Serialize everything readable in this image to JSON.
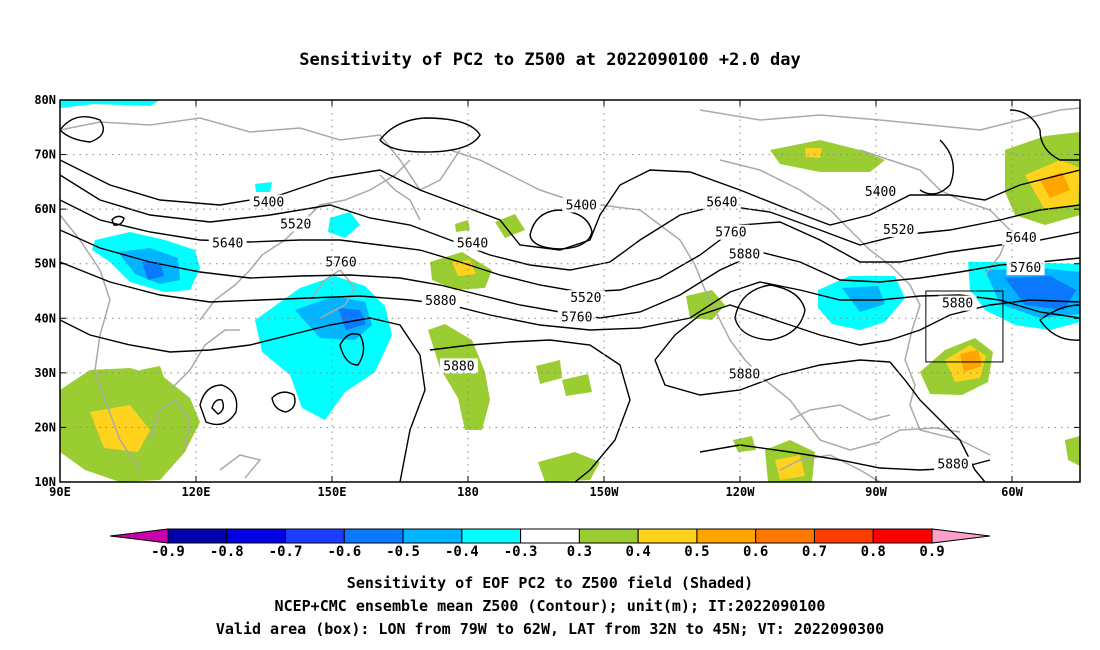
{
  "title": "Sensitivity of PC2 to Z500 at 2022090100 +2.0 day",
  "lat_labels": [
    "80N",
    "70N",
    "60N",
    "50N",
    "40N",
    "30N",
    "20N",
    "10N"
  ],
  "lon_labels": [
    "90E",
    "120E",
    "150E",
    "180",
    "150W",
    "120W",
    "90W",
    "60W"
  ],
  "contour_labels": [
    {
      "text": "5400",
      "lon": 136,
      "lat": 61
    },
    {
      "text": "5520",
      "lon": 142,
      "lat": 57
    },
    {
      "text": "5640",
      "lon": 127,
      "lat": 53.5
    },
    {
      "text": "5760",
      "lon": 152,
      "lat": 50
    },
    {
      "text": "5880",
      "lon": 174,
      "lat": 43
    },
    {
      "text": "5640",
      "lon": 181,
      "lat": 53.5
    },
    {
      "text": "5400",
      "lon": 205,
      "lat": 60.5
    },
    {
      "text": "5520",
      "lon": 206,
      "lat": 43.5
    },
    {
      "text": "5760",
      "lon": 204,
      "lat": 40
    },
    {
      "text": "5880",
      "lon": 178,
      "lat": 31
    },
    {
      "text": "5640",
      "lon": 236,
      "lat": 61
    },
    {
      "text": "5760",
      "lon": 238,
      "lat": 55.5
    },
    {
      "text": "5880",
      "lon": 241,
      "lat": 51.5
    },
    {
      "text": "5880",
      "lon": 241,
      "lat": 29.5
    },
    {
      "text": "5400",
      "lon": 271,
      "lat": 63
    },
    {
      "text": "5520",
      "lon": 275,
      "lat": 56
    },
    {
      "text": "5640",
      "lon": 302,
      "lat": 54.5
    },
    {
      "text": "5760",
      "lon": 303,
      "lat": 49
    },
    {
      "text": "5880",
      "lon": 288,
      "lat": 42.5
    },
    {
      "text": "5880",
      "lon": 287,
      "lat": 13
    }
  ],
  "valid_box": {
    "lon_min": 281,
    "lon_max": 298,
    "lat_min": 32,
    "lat_max": 45
  },
  "colorbar": {
    "labels": [
      "-0.9",
      "-0.8",
      "-0.7",
      "-0.6",
      "-0.5",
      "-0.4",
      "-0.3",
      "0.3",
      "0.4",
      "0.5",
      "0.6",
      "0.7",
      "0.8",
      "0.9"
    ],
    "colors": [
      "#0000aa",
      "#0000e0",
      "#1e3cff",
      "#0a78ff",
      "#00b4ff",
      "#00ffff",
      "#ffffff",
      "#9acd32",
      "#ffd21e",
      "#ffa500",
      "#ff7800",
      "#ff3c00",
      "#ff0000"
    ],
    "low_color": "#c800aa",
    "high_color": "#ffa0c8"
  },
  "captions": [
    "Sensitivity of EOF PC2 to Z500 field (Shaded)",
    "NCEP+CMC ensemble mean Z500 (Contour); unit(m); IT:2022090100",
    "Valid area (box): LON from 79W to 62W, LAT from 32N to 45N; VT: 2022090300"
  ]
}
